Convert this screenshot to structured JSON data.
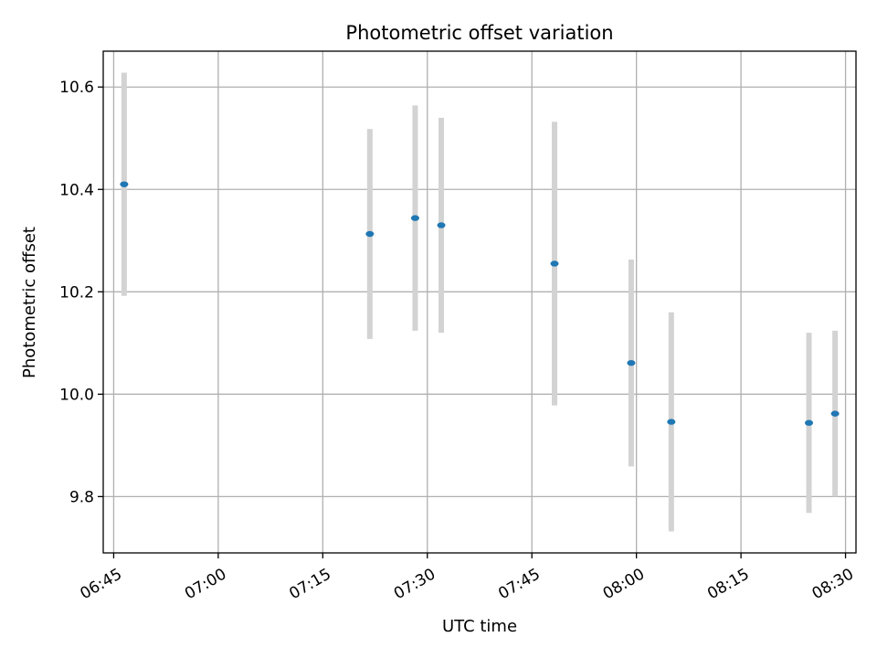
{
  "chart_data": {
    "type": "scatter",
    "title": "Photometric offset variation",
    "xlabel": "UTC time",
    "ylabel": "Photometric offset",
    "x_ticks": [
      "06:45",
      "07:00",
      "07:15",
      "07:30",
      "07:45",
      "08:00",
      "08:15",
      "08:30"
    ],
    "y_ticks": [
      "9.8",
      "10.0",
      "10.2",
      "10.4",
      "10.6"
    ],
    "xlim": [
      "06:43:30",
      "08:31:30"
    ],
    "ylim": [
      9.69,
      10.67
    ],
    "grid": true,
    "series": [
      {
        "points": [
          {
            "x": "06:46:30",
            "y": 10.41,
            "err": 0.218
          },
          {
            "x": "07:21:45",
            "y": 10.313,
            "err": 0.205
          },
          {
            "x": "07:28:15",
            "y": 10.344,
            "err": 0.22
          },
          {
            "x": "07:32:00",
            "y": 10.33,
            "err": 0.21
          },
          {
            "x": "07:48:15",
            "y": 10.255,
            "err": 0.277
          },
          {
            "x": "07:59:15",
            "y": 10.061,
            "err": 0.202
          },
          {
            "x": "08:05:00",
            "y": 9.946,
            "err": 0.214
          },
          {
            "x": "08:24:45",
            "y": 9.944,
            "err": 0.176
          },
          {
            "x": "08:28:30",
            "y": 9.962,
            "err": 0.162
          }
        ],
        "marker_color": "#1f77b4",
        "errorbar_color": "#d3d3d3"
      }
    ]
  }
}
